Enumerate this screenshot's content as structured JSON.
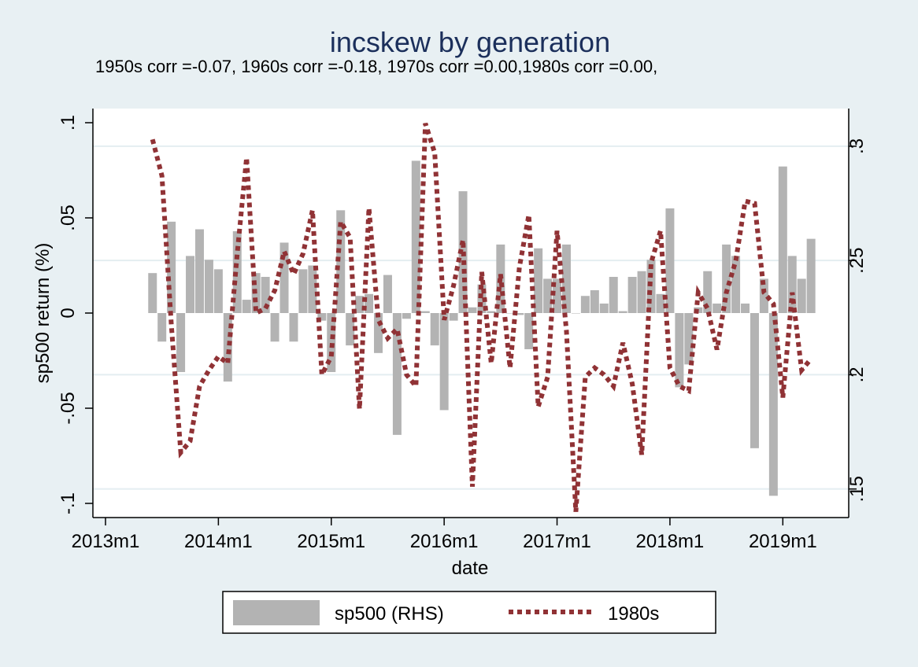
{
  "chart_data": {
    "type": "bar",
    "title": "incskew by generation",
    "subtitle": "1950s corr =-0.07, 1960s corr =-0.18, 1970s corr =0.00,1980s corr =0.00,",
    "xlabel": "date",
    "ylabel": "sp500 return (%)",
    "x_ticks": [
      "2013m1",
      "2014m1",
      "2015m1",
      "2016m1",
      "2017m1",
      "2018m1",
      "2019m1"
    ],
    "x_range": [
      "2013m1",
      "2019m7"
    ],
    "ylim": [
      -0.1,
      0.1
    ],
    "y_ticks": [
      "-.1",
      "-.05",
      "0",
      ".05",
      ".1"
    ],
    "y2lim": [
      0.1375,
      0.3165
    ],
    "y2_ticks": [
      ".15",
      ".2",
      ".25",
      ".3"
    ],
    "grid": true,
    "legend_position": "bottom",
    "legend": [
      {
        "label": "sp500 (RHS)",
        "key": "sp500"
      },
      {
        "label": "1980s",
        "key": "1980s"
      }
    ],
    "colors": {
      "bars": "#b3b3b3",
      "line": "#903235",
      "plot_bg": "#ffffff",
      "outer_bg": "#e8f0f3",
      "grid": "#e4eef1",
      "title": "#1b2f5b"
    },
    "series": [
      {
        "name": "sp500 (RHS)",
        "type": "bar",
        "axis": "left",
        "x": [
          "2013m6",
          "2013m7",
          "2013m8",
          "2013m9",
          "2013m10",
          "2013m11",
          "2013m12",
          "2014m1",
          "2014m2",
          "2014m3",
          "2014m4",
          "2014m5",
          "2014m6",
          "2014m7",
          "2014m8",
          "2014m9",
          "2014m10",
          "2014m11",
          "2014m12",
          "2015m1",
          "2015m2",
          "2015m3",
          "2015m4",
          "2015m5",
          "2015m6",
          "2015m7",
          "2015m8",
          "2015m9",
          "2015m10",
          "2015m11",
          "2015m12",
          "2016m1",
          "2016m2",
          "2016m3",
          "2016m4",
          "2016m5",
          "2016m6",
          "2016m7",
          "2016m8",
          "2016m9",
          "2016m10",
          "2016m11",
          "2016m12",
          "2017m1",
          "2017m2",
          "2017m3",
          "2017m4",
          "2017m5",
          "2017m6",
          "2017m7",
          "2017m8",
          "2017m9",
          "2017m10",
          "2017m11",
          "2017m12",
          "2018m1",
          "2018m2",
          "2018m3",
          "2018m4",
          "2018m5",
          "2018m6",
          "2018m7",
          "2018m8",
          "2018m9",
          "2018m10",
          "2018m11",
          "2018m12",
          "2019m1",
          "2019m2",
          "2019m3",
          "2019m4"
        ],
        "values": [
          0.021,
          -0.015,
          0.048,
          -0.031,
          0.03,
          0.044,
          0.028,
          0.023,
          -0.036,
          0.043,
          0.007,
          0.021,
          0.019,
          -0.015,
          0.037,
          -0.015,
          0.023,
          0.025,
          -0.004,
          -0.031,
          0.054,
          -0.017,
          0.009,
          0.01,
          -0.021,
          0.02,
          -0.064,
          -0.003,
          0.08,
          0.001,
          -0.017,
          -0.051,
          -0.004,
          0.064,
          0.003,
          0.015,
          0.001,
          0.036,
          0.0,
          -0.001,
          -0.019,
          0.034,
          0.018,
          0.018,
          0.036,
          0.0,
          0.009,
          0.012,
          0.005,
          0.019,
          0.001,
          0.019,
          0.022,
          0.028,
          0.01,
          0.055,
          -0.039,
          -0.027,
          0.003,
          0.022,
          0.005,
          0.036,
          0.03,
          0.005,
          -0.071,
          0.018,
          -0.096,
          0.077,
          0.03,
          0.018,
          0.039
        ]
      },
      {
        "name": "1980s",
        "type": "line",
        "axis": "right",
        "x": [
          "2013m6",
          "2013m7",
          "2013m8",
          "2013m9",
          "2013m10",
          "2013m11",
          "2013m12",
          "2014m1",
          "2014m2",
          "2014m3",
          "2014m4",
          "2014m5",
          "2014m6",
          "2014m7",
          "2014m8",
          "2014m9",
          "2014m10",
          "2014m11",
          "2014m12",
          "2015m1",
          "2015m2",
          "2015m3",
          "2015m4",
          "2015m5",
          "2015m6",
          "2015m7",
          "2015m8",
          "2015m9",
          "2015m10",
          "2015m11",
          "2015m12",
          "2016m1",
          "2016m2",
          "2016m3",
          "2016m4",
          "2016m5",
          "2016m6",
          "2016m7",
          "2016m8",
          "2016m9",
          "2016m10",
          "2016m11",
          "2016m12",
          "2017m1",
          "2017m2",
          "2017m3",
          "2017m4",
          "2017m5",
          "2017m6",
          "2017m7",
          "2017m8",
          "2017m9",
          "2017m10",
          "2017m11",
          "2017m12",
          "2018m1",
          "2018m2",
          "2018m3",
          "2018m4",
          "2018m5",
          "2018m6",
          "2018m7",
          "2018m8",
          "2018m9",
          "2018m10",
          "2018m11",
          "2018m12",
          "2019m1",
          "2019m2",
          "2019m3",
          "2019m4"
        ],
        "values": [
          0.303,
          0.287,
          0.222,
          0.166,
          0.171,
          0.195,
          0.202,
          0.208,
          0.205,
          0.253,
          0.295,
          0.227,
          0.229,
          0.237,
          0.254,
          0.244,
          0.253,
          0.272,
          0.2,
          0.208,
          0.267,
          0.26,
          0.185,
          0.273,
          0.224,
          0.216,
          0.22,
          0.2,
          0.195,
          0.31,
          0.297,
          0.224,
          0.239,
          0.259,
          0.151,
          0.245,
          0.205,
          0.244,
          0.203,
          0.247,
          0.27,
          0.186,
          0.199,
          0.263,
          0.219,
          0.14,
          0.199,
          0.203,
          0.2,
          0.195,
          0.214,
          0.196,
          0.165,
          0.249,
          0.263,
          0.203,
          0.195,
          0.193,
          0.236,
          0.229,
          0.211,
          0.236,
          0.25,
          0.276,
          0.275,
          0.236,
          0.231,
          0.19,
          0.236,
          0.202,
          0.207
        ]
      }
    ]
  }
}
